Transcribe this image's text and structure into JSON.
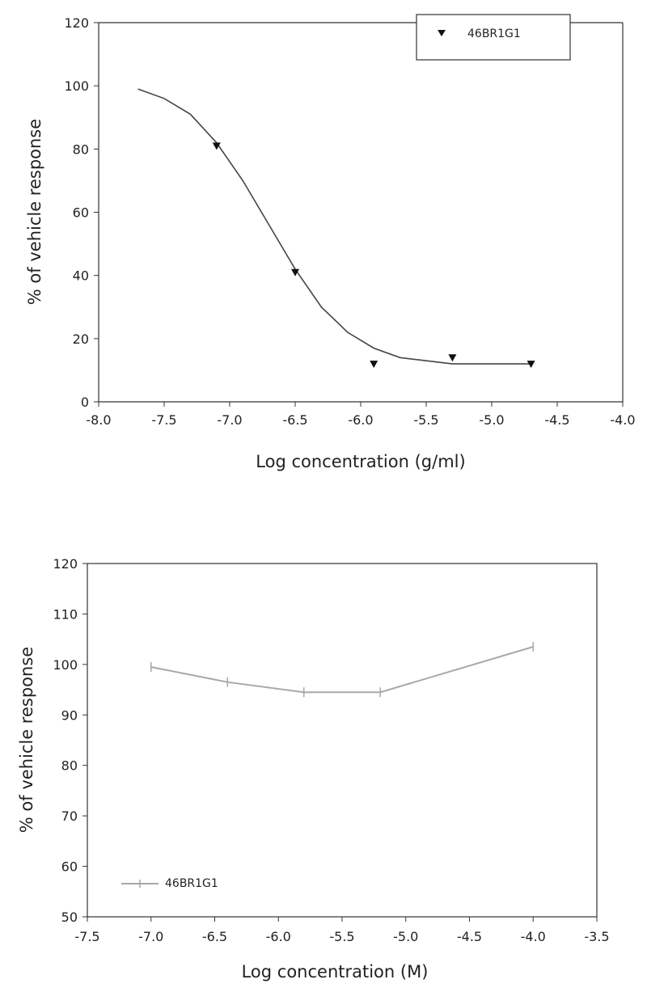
{
  "chart_data": [
    {
      "type": "scatter",
      "xlabel": "Log concentration (g/ml)",
      "ylabel": "% of vehicle response",
      "xlim": [
        -8.0,
        -4.0
      ],
      "ylim": [
        0,
        120
      ],
      "xticks": [
        "-8.0",
        "-7.5",
        "-7.0",
        "-6.5",
        "-6.0",
        "-5.5",
        "-5.0",
        "-4.5",
        "-4.0"
      ],
      "yticks": [
        "0",
        "20",
        "40",
        "60",
        "80",
        "100",
        "120"
      ],
      "legend_position": "top-right",
      "grid": false,
      "series": [
        {
          "name": "46BR1G1",
          "marker": "triangle-down",
          "x": [
            -7.1,
            -6.5,
            -5.9,
            -5.3,
            -4.7
          ],
          "y": [
            81,
            41,
            12,
            14,
            12
          ]
        }
      ],
      "fit_curve": {
        "x": [
          -7.7,
          -7.5,
          -7.3,
          -7.1,
          -6.9,
          -6.7,
          -6.5,
          -6.3,
          -6.1,
          -5.9,
          -5.7,
          -5.5,
          -5.3,
          -5.1,
          -4.9,
          -4.7
        ],
        "y": [
          99,
          96,
          91,
          82,
          70,
          56,
          42,
          30,
          22,
          17,
          14,
          13,
          12,
          12,
          12,
          12
        ]
      }
    },
    {
      "type": "line",
      "xlabel": "Log concentration (M)",
      "ylabel": "% of vehicle response",
      "xlim": [
        -7.5,
        -3.5
      ],
      "ylim": [
        50,
        120
      ],
      "xticks": [
        "-7.5",
        "-7.0",
        "-6.5",
        "-6.0",
        "-5.5",
        "-5.0",
        "-4.5",
        "-4.0",
        "-3.5"
      ],
      "yticks": [
        "50",
        "60",
        "70",
        "80",
        "90",
        "100",
        "110",
        "120"
      ],
      "legend_position": "bottom-left",
      "grid": false,
      "color": "#a8a8a8",
      "series": [
        {
          "name": "46BR1G1",
          "x": [
            -7.0,
            -6.4,
            -5.8,
            -5.2,
            -4.0
          ],
          "y": [
            99.5,
            96.5,
            94.5,
            94.5,
            103.5
          ]
        }
      ]
    }
  ]
}
